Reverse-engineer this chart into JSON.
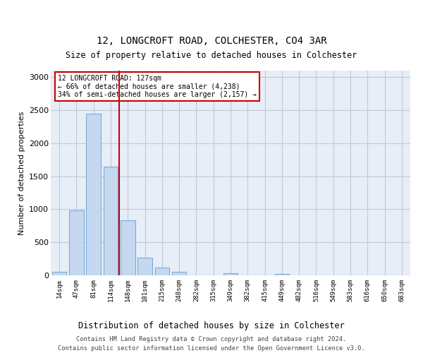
{
  "title": "12, LONGCROFT ROAD, COLCHESTER, CO4 3AR",
  "subtitle": "Size of property relative to detached houses in Colchester",
  "xlabel": "Distribution of detached houses by size in Colchester",
  "ylabel": "Number of detached properties",
  "bar_labels": [
    "14sqm",
    "47sqm",
    "81sqm",
    "114sqm",
    "148sqm",
    "181sqm",
    "215sqm",
    "248sqm",
    "282sqm",
    "315sqm",
    "349sqm",
    "382sqm",
    "415sqm",
    "449sqm",
    "482sqm",
    "516sqm",
    "549sqm",
    "583sqm",
    "616sqm",
    "650sqm",
    "683sqm"
  ],
  "bar_values": [
    55,
    980,
    2450,
    1650,
    830,
    265,
    120,
    55,
    0,
    0,
    35,
    0,
    0,
    20,
    0,
    0,
    0,
    0,
    0,
    0,
    0
  ],
  "bar_color": "#c5d8f0",
  "bar_edge_color": "#7aacd6",
  "grid_color": "#c0c8d8",
  "background_color": "#e8eef8",
  "vline_color": "#cc0000",
  "annotation_line1": "12 LONGCROFT ROAD: 127sqm",
  "annotation_line2": "← 66% of detached houses are smaller (4,238)",
  "annotation_line3": "34% of semi-detached houses are larger (2,157) →",
  "ylim": [
    0,
    3100
  ],
  "yticks": [
    0,
    500,
    1000,
    1500,
    2000,
    2500,
    3000
  ],
  "footer_line1": "Contains HM Land Registry data © Crown copyright and database right 2024.",
  "footer_line2": "Contains public sector information licensed under the Open Government Licence v3.0."
}
